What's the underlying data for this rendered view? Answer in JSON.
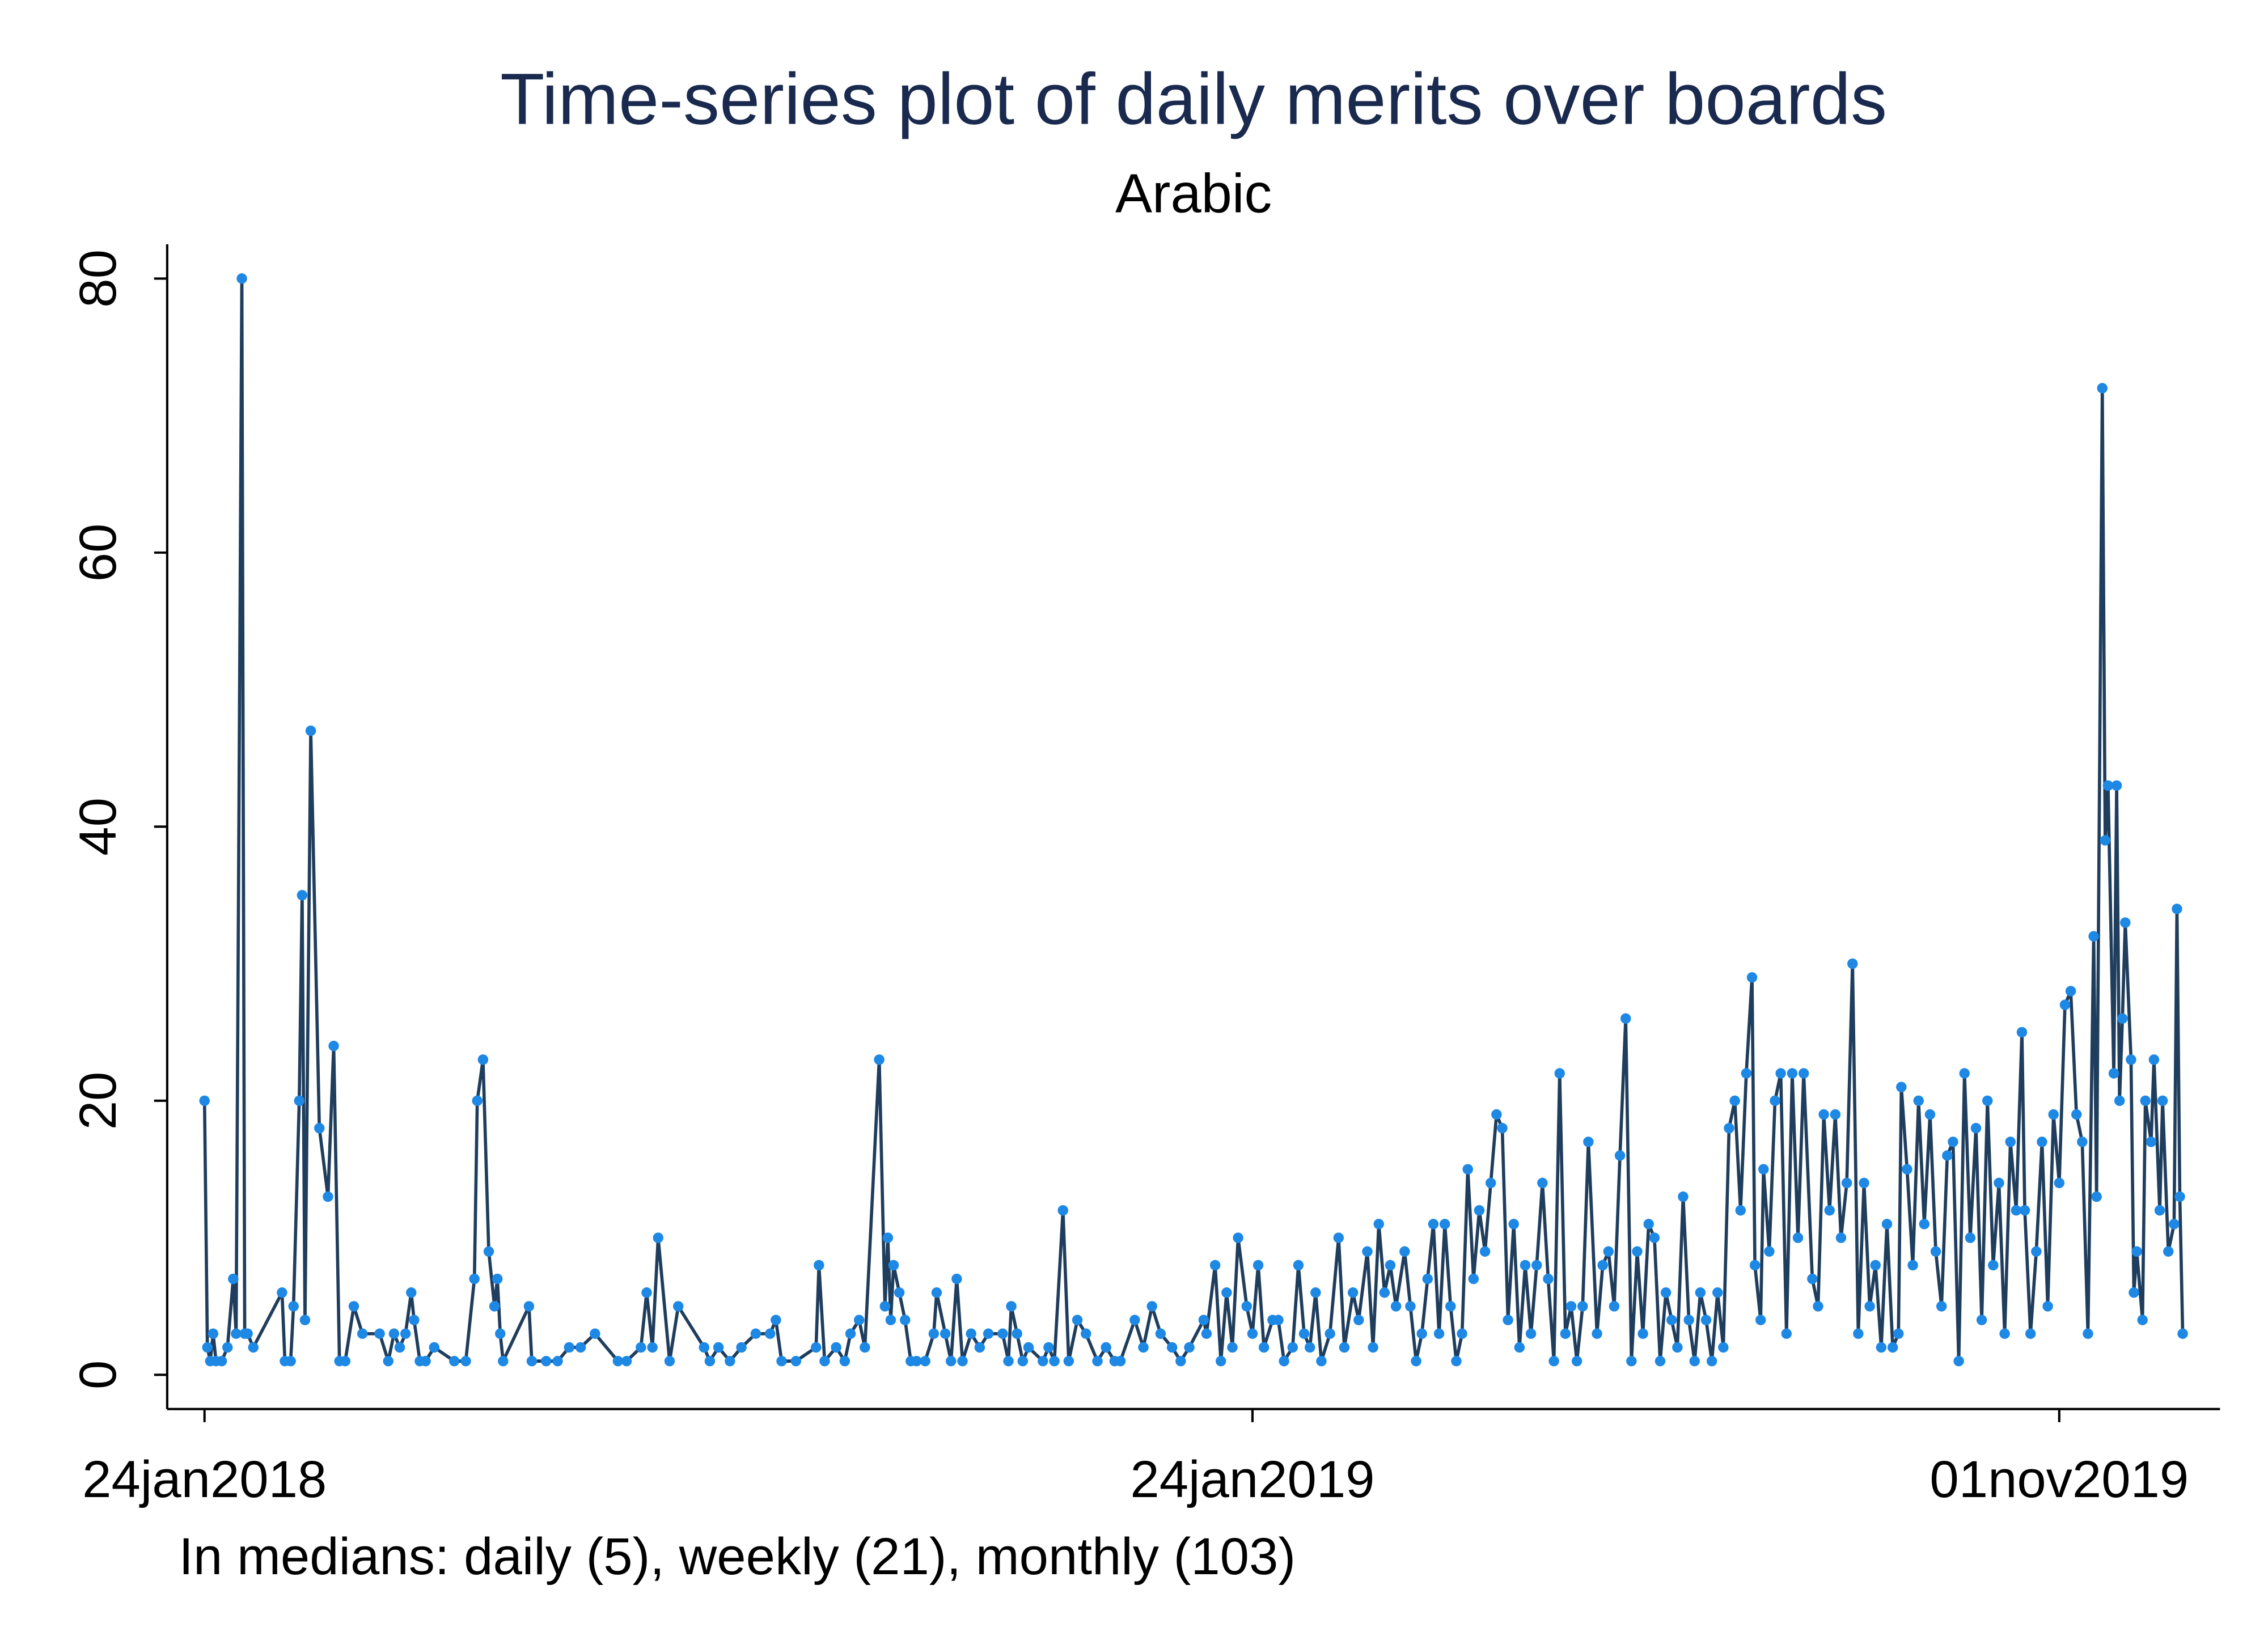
{
  "chart_data": {
    "type": "line",
    "title": "Time-series plot of daily merits over boards",
    "subtitle": "Arabic",
    "note": "In medians: daily (5), weekly (21), monthly (103)",
    "line_color": "#1f3d5c",
    "marker_color": "#1e88e5",
    "xlim": [
      "2018-01-11",
      "2019-12-27"
    ],
    "xticks": [
      {
        "value": "2018-01-24",
        "label": "24jan2018"
      },
      {
        "value": "2019-01-24",
        "label": "24jan2019"
      },
      {
        "value": "2019-11-01",
        "label": "01nov2019"
      }
    ],
    "ylim": [
      -2.5,
      82.5
    ],
    "yticks": [
      0,
      20,
      40,
      60,
      80
    ],
    "x": [
      "2018-01-24",
      "2018-01-25",
      "2018-01-26",
      "2018-01-27",
      "2018-01-28",
      "2018-01-30",
      "2018-02-01",
      "2018-02-03",
      "2018-02-04",
      "2018-02-06",
      "2018-02-07",
      "2018-02-08",
      "2018-02-10",
      "2018-02-20",
      "2018-02-21",
      "2018-02-23",
      "2018-02-24",
      "2018-02-26",
      "2018-02-27",
      "2018-02-28",
      "2018-03-02",
      "2018-03-05",
      "2018-03-08",
      "2018-03-10",
      "2018-03-12",
      "2018-03-14",
      "2018-03-17",
      "2018-03-20",
      "2018-03-26",
      "2018-03-29",
      "2018-03-31",
      "2018-04-02",
      "2018-04-04",
      "2018-04-06",
      "2018-04-07",
      "2018-04-09",
      "2018-04-11",
      "2018-04-14",
      "2018-04-21",
      "2018-04-25",
      "2018-04-28",
      "2018-04-29",
      "2018-05-01",
      "2018-05-03",
      "2018-05-05",
      "2018-05-06",
      "2018-05-07",
      "2018-05-08",
      "2018-05-17",
      "2018-05-18",
      "2018-05-23",
      "2018-05-27",
      "2018-05-31",
      "2018-06-04",
      "2018-06-09",
      "2018-06-17",
      "2018-06-20",
      "2018-06-25",
      "2018-06-27",
      "2018-06-29",
      "2018-07-01",
      "2018-07-05",
      "2018-07-08",
      "2018-07-17",
      "2018-07-19",
      "2018-07-22",
      "2018-07-26",
      "2018-07-30",
      "2018-08-04",
      "2018-08-09",
      "2018-08-11",
      "2018-08-13",
      "2018-08-18",
      "2018-08-25",
      "2018-08-26",
      "2018-08-28",
      "2018-09-01",
      "2018-09-04",
      "2018-09-06",
      "2018-09-09",
      "2018-09-11",
      "2018-09-16",
      "2018-09-18",
      "2018-09-19",
      "2018-09-20",
      "2018-09-21",
      "2018-09-23",
      "2018-09-25",
      "2018-09-27",
      "2018-09-29",
      "2018-10-02",
      "2018-10-05",
      "2018-10-06",
      "2018-10-09",
      "2018-10-11",
      "2018-10-13",
      "2018-10-15",
      "2018-10-18",
      "2018-10-21",
      "2018-10-24",
      "2018-10-29",
      "2018-10-31",
      "2018-11-01",
      "2018-11-03",
      "2018-11-05",
      "2018-11-07",
      "2018-11-12",
      "2018-11-14",
      "2018-11-16",
      "2018-11-19",
      "2018-11-21",
      "2018-11-24",
      "2018-11-27",
      "2018-12-01",
      "2018-12-04",
      "2018-12-07",
      "2018-12-09",
      "2018-12-14",
      "2018-12-17",
      "2018-12-20",
      "2018-12-23",
      "2018-12-27",
      "2018-12-30",
      "2019-01-02",
      "2019-01-07",
      "2019-01-08",
      "2019-01-11",
      "2019-01-13",
      "2019-01-15",
      "2019-01-17",
      "2019-01-19",
      "2019-01-22",
      "2019-01-24",
      "2019-01-26",
      "2019-01-28",
      "2019-01-31",
      "2019-02-02",
      "2019-02-04",
      "2019-02-07",
      "2019-02-09",
      "2019-02-11",
      "2019-02-13",
      "2019-02-15",
      "2019-02-17",
      "2019-02-20",
      "2019-02-23",
      "2019-02-25",
      "2019-02-28",
      "2019-03-02",
      "2019-03-05",
      "2019-03-07",
      "2019-03-09",
      "2019-03-11",
      "2019-03-13",
      "2019-03-15",
      "2019-03-18",
      "2019-03-20",
      "2019-03-22",
      "2019-03-24",
      "2019-03-26",
      "2019-03-28",
      "2019-03-30",
      "2019-04-01",
      "2019-04-03",
      "2019-04-05",
      "2019-04-07",
      "2019-04-09",
      "2019-04-11",
      "2019-04-13",
      "2019-04-15",
      "2019-04-17",
      "2019-04-19",
      "2019-04-21",
      "2019-04-23",
      "2019-04-25",
      "2019-04-27",
      "2019-04-29",
      "2019-05-01",
      "2019-05-03",
      "2019-05-05",
      "2019-05-07",
      "2019-05-09",
      "2019-05-11",
      "2019-05-13",
      "2019-05-15",
      "2019-05-17",
      "2019-05-19",
      "2019-05-21",
      "2019-05-24",
      "2019-05-26",
      "2019-05-28",
      "2019-05-30",
      "2019-06-01",
      "2019-06-03",
      "2019-06-05",
      "2019-06-07",
      "2019-06-09",
      "2019-06-11",
      "2019-06-13",
      "2019-06-15",
      "2019-06-17",
      "2019-06-19",
      "2019-06-21",
      "2019-06-23",
      "2019-06-25",
      "2019-06-27",
      "2019-06-29",
      "2019-07-01",
      "2019-07-03",
      "2019-07-05",
      "2019-07-07",
      "2019-07-09",
      "2019-07-11",
      "2019-07-13",
      "2019-07-15",
      "2019-07-17",
      "2019-07-18",
      "2019-07-20",
      "2019-07-21",
      "2019-07-23",
      "2019-07-25",
      "2019-07-27",
      "2019-07-29",
      "2019-07-31",
      "2019-08-02",
      "2019-08-04",
      "2019-08-07",
      "2019-08-09",
      "2019-08-11",
      "2019-08-13",
      "2019-08-15",
      "2019-08-17",
      "2019-08-19",
      "2019-08-21",
      "2019-08-23",
      "2019-08-25",
      "2019-08-27",
      "2019-08-29",
      "2019-08-31",
      "2019-09-02",
      "2019-09-04",
      "2019-09-06",
      "2019-09-07",
      "2019-09-09",
      "2019-09-11",
      "2019-09-13",
      "2019-09-15",
      "2019-09-17",
      "2019-09-19",
      "2019-09-21",
      "2019-09-23",
      "2019-09-25",
      "2019-09-27",
      "2019-09-29",
      "2019-10-01",
      "2019-10-03",
      "2019-10-05",
      "2019-10-07",
      "2019-10-09",
      "2019-10-11",
      "2019-10-13",
      "2019-10-15",
      "2019-10-17",
      "2019-10-19",
      "2019-10-20",
      "2019-10-22",
      "2019-10-24",
      "2019-10-26",
      "2019-10-28",
      "2019-10-30",
      "2019-11-01",
      "2019-11-03",
      "2019-11-05",
      "2019-11-07",
      "2019-11-09",
      "2019-11-11",
      "2019-11-13",
      "2019-11-14",
      "2019-11-16",
      "2019-11-17",
      "2019-11-18",
      "2019-11-20",
      "2019-11-21",
      "2019-11-22",
      "2019-11-23",
      "2019-11-24",
      "2019-11-26",
      "2019-11-27",
      "2019-11-28",
      "2019-11-30",
      "2019-12-01",
      "2019-12-03",
      "2019-12-04",
      "2019-12-06",
      "2019-12-07",
      "2019-12-09",
      "2019-12-11",
      "2019-12-12",
      "2019-12-13",
      "2019-12-14"
    ],
    "values": [
      20,
      2,
      1,
      3,
      1,
      1,
      2,
      7,
      3,
      80,
      3,
      3,
      2,
      6,
      1,
      1,
      5,
      20,
      35,
      4,
      47,
      18,
      13,
      24,
      1,
      1,
      5,
      3,
      3,
      1,
      3,
      2,
      3,
      6,
      4,
      1,
      1,
      2,
      1,
      1,
      7,
      20,
      23,
      9,
      5,
      7,
      3,
      1,
      5,
      1,
      1,
      1,
      2,
      2,
      3,
      1,
      1,
      2,
      6,
      2,
      10,
      1,
      5,
      2,
      1,
      2,
      1,
      2,
      3,
      3,
      4,
      1,
      1,
      2,
      8,
      1,
      2,
      1,
      3,
      4,
      2,
      23,
      5,
      10,
      4,
      8,
      6,
      4,
      1,
      1,
      1,
      3,
      6,
      3,
      1,
      7,
      1,
      3,
      2,
      3,
      3,
      1,
      5,
      3,
      1,
      2,
      1,
      2,
      1,
      12,
      1,
      4,
      3,
      1,
      2,
      1,
      1,
      4,
      2,
      5,
      3,
      2,
      1,
      2,
      4,
      3,
      8,
      1,
      6,
      2,
      10,
      5,
      3,
      8,
      2,
      4,
      4,
      1,
      2,
      8,
      3,
      2,
      6,
      1,
      3,
      10,
      2,
      6,
      4,
      9,
      2,
      11,
      6,
      8,
      5,
      9,
      5,
      1,
      3,
      7,
      11,
      3,
      11,
      5,
      1,
      3,
      15,
      7,
      12,
      9,
      14,
      19,
      18,
      4,
      11,
      2,
      8,
      3,
      8,
      14,
      7,
      1,
      22,
      3,
      5,
      1,
      5,
      17,
      3,
      8,
      9,
      5,
      16,
      26,
      1,
      9,
      3,
      11,
      10,
      1,
      6,
      4,
      2,
      13,
      4,
      1,
      6,
      4,
      1,
      6,
      2,
      18,
      20,
      12,
      22,
      29,
      8,
      4,
      15,
      9,
      20,
      22,
      3,
      22,
      10,
      22,
      7,
      5,
      19,
      12,
      19,
      10,
      14,
      30,
      3,
      14,
      5,
      8,
      2,
      11,
      2,
      3,
      21,
      15,
      8,
      20,
      11,
      19,
      9,
      5,
      16,
      17,
      1,
      22,
      10,
      18,
      4,
      20,
      8,
      14,
      3,
      17,
      12,
      25,
      12,
      3,
      9,
      17,
      5,
      19,
      14,
      27,
      28,
      19,
      17,
      3,
      32,
      13,
      72,
      39,
      43,
      22,
      43,
      20,
      26,
      33,
      23,
      6,
      9,
      4,
      20,
      17,
      23,
      12,
      20,
      9,
      11,
      34,
      13,
      3
    ]
  }
}
